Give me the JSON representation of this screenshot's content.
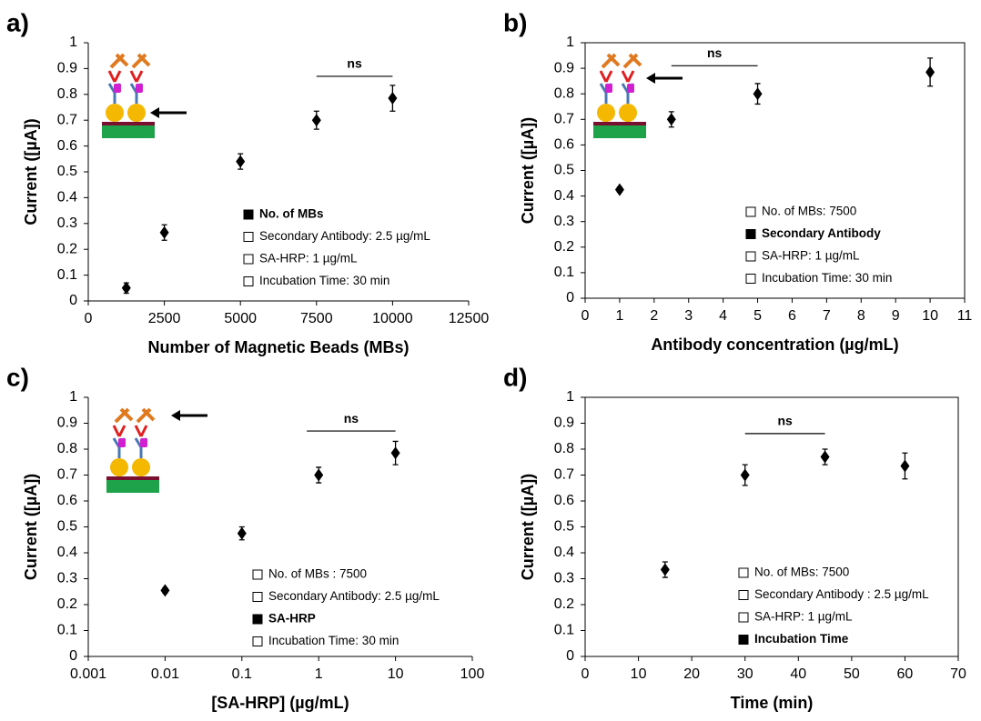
{
  "chart_data": [
    {
      "type": "scatter",
      "panel_label": "a)",
      "xlabel": "Number of Magnetic Beads (MBs)",
      "ylabel": "Current ([µA])",
      "x": [
        1250,
        2500,
        5000,
        7500,
        10000
      ],
      "series": [
        {
          "color": "#000000",
          "values": [
            0.05,
            0.265,
            0.54,
            0.7,
            0.785
          ],
          "errors": [
            0.02,
            0.03,
            0.03,
            0.035,
            0.05
          ]
        }
      ],
      "xlim": [
        0,
        12500
      ],
      "xticks": [
        0,
        2500,
        5000,
        7500,
        10000,
        12500
      ],
      "ylim": [
        0,
        1
      ],
      "yticks": [
        0,
        0.1,
        0.2,
        0.3,
        0.4,
        0.5,
        0.6,
        0.7,
        0.8,
        0.9,
        1
      ],
      "frame": false,
      "annotation": {
        "text": "ns",
        "x": [
          7500,
          10000
        ],
        "y": 0.87
      },
      "legend_items": [
        "No. of  MBs",
        "Secondary Antibody: 2.5 µg/mL",
        "SA-HRP: 1 µg/mL",
        "Incubation Time: 30 min"
      ],
      "legend_highlight": 0
    },
    {
      "type": "scatter",
      "panel_label": "b)",
      "xlabel": "Antibody concentration (µg/mL)",
      "ylabel": "Current ([µA])",
      "x": [
        1,
        2.5,
        5,
        10
      ],
      "series": [
        {
          "color": "#000000",
          "values": [
            0.425,
            0.7,
            0.8,
            0.885
          ],
          "errors": [
            0.01,
            0.03,
            0.04,
            0.055
          ]
        }
      ],
      "xlim": [
        0,
        11
      ],
      "xticks": [
        0,
        1,
        2,
        3,
        4,
        5,
        6,
        7,
        8,
        9,
        10,
        11
      ],
      "ylim": [
        0,
        1
      ],
      "yticks": [
        0,
        0.1,
        0.2,
        0.3,
        0.4,
        0.5,
        0.6,
        0.7,
        0.8,
        0.9,
        1
      ],
      "frame": true,
      "annotation": {
        "text": "ns",
        "x": [
          2.5,
          5
        ],
        "y": 0.91
      },
      "legend_items": [
        "No. of MBs: 7500",
        "Secondary Antibody",
        "SA-HRP: 1 µg/mL",
        "Incubation Time: 30 min"
      ],
      "legend_highlight": 1
    },
    {
      "type": "scatter",
      "panel_label": "c)",
      "xlabel": "[SA-HRP] (µg/mL)",
      "ylabel": "Current ([µA])",
      "x": [
        0.01,
        0.1,
        1,
        10
      ],
      "xscale": "log",
      "series": [
        {
          "color": "#000000",
          "values": [
            0.255,
            0.475,
            0.7,
            0.785
          ],
          "errors": [
            0.01,
            0.025,
            0.03,
            0.045
          ]
        }
      ],
      "xlim": [
        0.001,
        100
      ],
      "xticks": [
        0.001,
        0.01,
        0.1,
        1,
        10,
        100
      ],
      "ylim": [
        0,
        1
      ],
      "yticks": [
        0,
        0.1,
        0.2,
        0.3,
        0.4,
        0.5,
        0.6,
        0.7,
        0.8,
        0.9,
        1
      ],
      "frame": false,
      "annotation": {
        "text": "ns",
        "x": [
          0.7,
          10
        ],
        "y": 0.87
      },
      "legend_items": [
        "No. of MBs : 7500",
        "Secondary Antibody: 2.5 µg/mL",
        "SA-HRP",
        "Incubation Time: 30 min"
      ],
      "legend_highlight": 2
    },
    {
      "type": "scatter",
      "panel_label": "d)",
      "xlabel": "Time (min)",
      "ylabel": "Current ([µA])",
      "x": [
        15,
        30,
        45,
        60
      ],
      "series": [
        {
          "color": "#000000",
          "values": [
            0.335,
            0.7,
            0.77,
            0.735
          ],
          "errors": [
            0.03,
            0.04,
            0.03,
            0.05
          ]
        }
      ],
      "xlim": [
        0,
        70
      ],
      "xticks": [
        0,
        10,
        20,
        30,
        40,
        50,
        60,
        70
      ],
      "ylim": [
        0,
        1
      ],
      "yticks": [
        0,
        0.1,
        0.2,
        0.3,
        0.4,
        0.5,
        0.6,
        0.7,
        0.8,
        0.9,
        1
      ],
      "frame": true,
      "annotation": {
        "text": "ns",
        "x": [
          30,
          45
        ],
        "y": 0.86
      },
      "legend_items": [
        "No. of MBs: 7500",
        "Secondary Antibody : 2.5 µg/mL",
        "SA-HRP: 1 µg/mL",
        "Incubation Time"
      ],
      "legend_highlight": 3
    }
  ]
}
